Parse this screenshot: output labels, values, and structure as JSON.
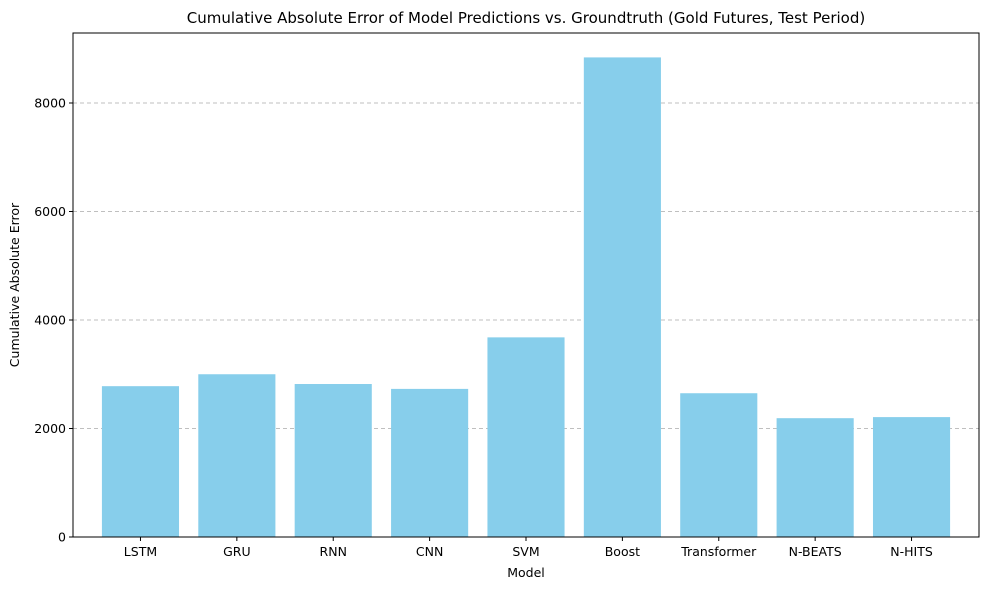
{
  "chart_data": {
    "type": "bar",
    "title": "Cumulative Absolute Error of Model Predictions vs. Groundtruth (Gold Futures, Test Period)",
    "xlabel": "Model",
    "ylabel": "Cumulative Absolute Error",
    "categories": [
      "LSTM",
      "GRU",
      "RNN",
      "CNN",
      "SVM",
      "Boost",
      "Transformer",
      "N-BEATS",
      "N-HITS"
    ],
    "values": [
      2780,
      3000,
      2820,
      2730,
      3680,
      8840,
      2650,
      2190,
      2210
    ],
    "ylim": [
      0,
      9290
    ],
    "yticks": [
      0,
      2000,
      4000,
      6000,
      8000
    ],
    "ytick_labels": [
      "0",
      "2000",
      "4000",
      "6000",
      "8000"
    ],
    "grid": "y-dashed",
    "bar_color": "#87CEEB",
    "legend": "none"
  }
}
